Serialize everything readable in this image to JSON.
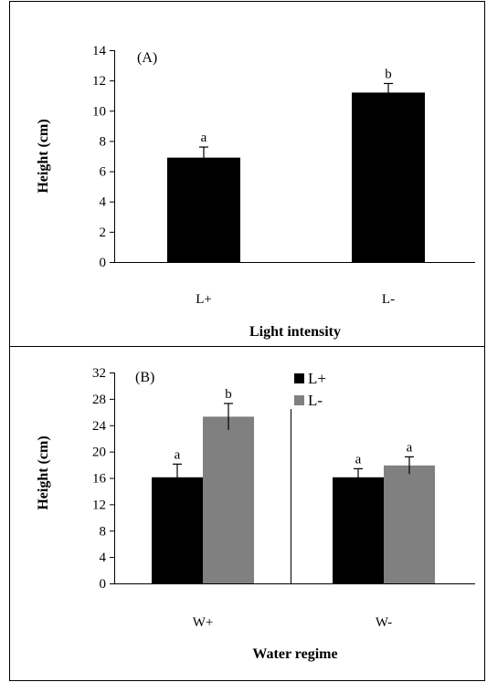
{
  "chart_data": [
    {
      "type": "bar",
      "panel_label": "(A)",
      "categories": [
        "L+",
        "L-"
      ],
      "values": [
        6.9,
        11.2
      ],
      "errors": [
        0.7,
        0.6
      ],
      "significance": [
        "a",
        "b"
      ],
      "xlabel": "Light intensity",
      "ylabel": "Height (cm)",
      "ylim": [
        0,
        14
      ],
      "yticks": [
        "0",
        "2",
        "4",
        "6",
        "8",
        "10",
        "12",
        "14"
      ],
      "colors": [
        "#000000"
      ]
    },
    {
      "type": "bar",
      "panel_label": "(B)",
      "categories": [
        "W+",
        "W-"
      ],
      "series": [
        {
          "name": "L+",
          "color": "#000000",
          "values": [
            16.1,
            16.1
          ],
          "errors": [
            2.0,
            1.3
          ],
          "significance": [
            "a",
            "a"
          ]
        },
        {
          "name": "L-",
          "color": "#808080",
          "values": [
            25.3,
            17.9
          ],
          "errors": [
            2.0,
            1.3
          ],
          "significance": [
            "b",
            "a"
          ]
        }
      ],
      "xlabel": "Water regime",
      "ylabel": "Height (cm)",
      "ylim": [
        0,
        32
      ],
      "yticks": [
        "0",
        "4",
        "8",
        "12",
        "16",
        "20",
        "24",
        "28",
        "32"
      ],
      "legend_position": "top-center"
    }
  ]
}
